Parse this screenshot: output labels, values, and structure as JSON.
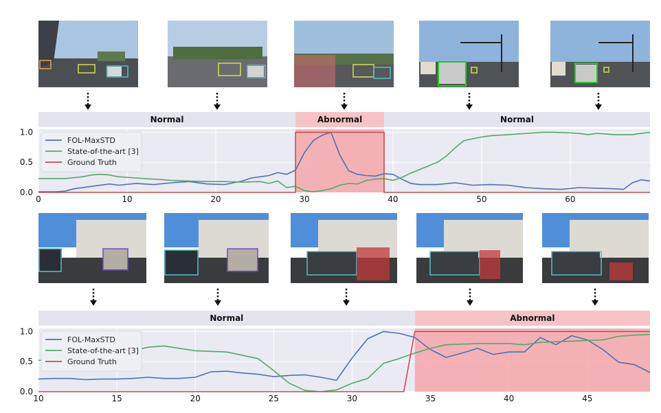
{
  "colors": {
    "fol": "#4c72b0",
    "sota": "#55a868",
    "gt": "#c44e52",
    "plot_bg": "#eaeaf2",
    "abnormal_fill": "#f4a7aa",
    "abnormal_band": "#f8c3c5",
    "normal_band": "#e4e4ee"
  },
  "chart_data": [
    {
      "type": "line",
      "xlim": [
        0,
        69
      ],
      "ylim": [
        0,
        1.05
      ],
      "x_ticks": [
        0,
        10,
        20,
        30,
        40,
        50,
        60
      ],
      "y_ticks": [
        0.0,
        0.5,
        1.0
      ],
      "y_tick_labels": [
        "0.0",
        "0.5",
        "1.0"
      ],
      "grid": true,
      "legend_position": "top-left",
      "phases": [
        {
          "label": "Normal",
          "start": 0,
          "end": 29
        },
        {
          "label": "Abnormal",
          "start": 29,
          "end": 39
        },
        {
          "label": "Normal",
          "start": 39,
          "end": 69
        }
      ],
      "abnormal_region": [
        29,
        39
      ],
      "series": [
        {
          "name": "FOL-MaxSTD",
          "color_key": "fol",
          "points": [
            [
              0,
              0.01
            ],
            [
              2,
              0.01
            ],
            [
              3,
              0.02
            ],
            [
              4,
              0.06
            ],
            [
              6,
              0.1
            ],
            [
              8,
              0.14
            ],
            [
              9,
              0.12
            ],
            [
              11,
              0.15
            ],
            [
              13,
              0.13
            ],
            [
              15,
              0.16
            ],
            [
              17,
              0.18
            ],
            [
              19,
              0.14
            ],
            [
              21,
              0.13
            ],
            [
              23,
              0.19
            ],
            [
              24,
              0.24
            ],
            [
              26,
              0.28
            ],
            [
              27,
              0.33
            ],
            [
              28,
              0.3
            ],
            [
              29,
              0.37
            ],
            [
              30,
              0.66
            ],
            [
              31,
              0.86
            ],
            [
              32,
              0.95
            ],
            [
              33,
              1.0
            ],
            [
              34,
              0.62
            ],
            [
              35,
              0.36
            ],
            [
              36,
              0.3
            ],
            [
              37,
              0.28
            ],
            [
              38,
              0.27
            ],
            [
              39,
              0.31
            ],
            [
              40,
              0.3
            ],
            [
              41,
              0.22
            ],
            [
              42,
              0.15
            ],
            [
              43,
              0.13
            ],
            [
              45,
              0.13
            ],
            [
              47,
              0.16
            ],
            [
              49,
              0.12
            ],
            [
              51,
              0.13
            ],
            [
              53,
              0.12
            ],
            [
              55,
              0.08
            ],
            [
              57,
              0.06
            ],
            [
              59,
              0.05
            ],
            [
              61,
              0.08
            ],
            [
              63,
              0.07
            ],
            [
              65,
              0.06
            ],
            [
              66,
              0.05
            ],
            [
              67,
              0.16
            ],
            [
              68,
              0.21
            ],
            [
              69,
              0.19
            ]
          ]
        },
        {
          "name": "State-of-the-art [3]",
          "color_key": "sota",
          "points": [
            [
              0,
              0.23
            ],
            [
              3,
              0.23
            ],
            [
              5,
              0.26
            ],
            [
              6,
              0.29
            ],
            [
              7,
              0.3
            ],
            [
              8,
              0.29
            ],
            [
              9,
              0.26
            ],
            [
              11,
              0.24
            ],
            [
              13,
              0.22
            ],
            [
              15,
              0.2
            ],
            [
              17,
              0.19
            ],
            [
              19,
              0.18
            ],
            [
              21,
              0.18
            ],
            [
              23,
              0.17
            ],
            [
              25,
              0.18
            ],
            [
              26,
              0.15
            ],
            [
              27,
              0.19
            ],
            [
              28,
              0.08
            ],
            [
              29,
              0.1
            ],
            [
              30,
              0.03
            ],
            [
              31,
              0.01
            ],
            [
              32,
              0.03
            ],
            [
              33,
              0.06
            ],
            [
              34,
              0.12
            ],
            [
              35,
              0.15
            ],
            [
              36,
              0.14
            ],
            [
              37,
              0.2
            ],
            [
              38,
              0.22
            ],
            [
              39,
              0.23
            ],
            [
              40,
              0.2
            ],
            [
              41,
              0.25
            ],
            [
              42,
              0.32
            ],
            [
              43,
              0.38
            ],
            [
              45,
              0.5
            ],
            [
              46,
              0.6
            ],
            [
              47,
              0.74
            ],
            [
              48,
              0.86
            ],
            [
              50,
              0.92
            ],
            [
              51,
              0.94
            ],
            [
              53,
              0.96
            ],
            [
              55,
              0.98
            ],
            [
              57,
              1.0
            ],
            [
              58,
              1.0
            ],
            [
              60,
              0.99
            ],
            [
              61,
              0.98
            ],
            [
              62,
              0.96
            ],
            [
              63,
              0.98
            ],
            [
              65,
              0.96
            ],
            [
              67,
              0.96
            ],
            [
              68,
              0.98
            ],
            [
              69,
              1.0
            ]
          ]
        },
        {
          "name": "Ground Truth",
          "color_key": "gt",
          "points": [
            [
              0,
              0
            ],
            [
              29,
              0
            ],
            [
              29,
              1
            ],
            [
              39,
              1
            ],
            [
              39,
              0
            ],
            [
              69,
              0
            ]
          ]
        }
      ]
    },
    {
      "type": "line",
      "xlim": [
        10,
        49
      ],
      "ylim": [
        0,
        1.05
      ],
      "x_ticks": [
        10,
        15,
        20,
        25,
        30,
        35,
        40,
        45
      ],
      "y_ticks": [
        0.0,
        0.5,
        1.0
      ],
      "y_tick_labels": [
        "0.0",
        "0.5",
        "1.0"
      ],
      "grid": true,
      "legend_position": "top-left",
      "phases": [
        {
          "label": "Normal",
          "start": 10,
          "end": 34
        },
        {
          "label": "Abnormal",
          "start": 34,
          "end": 49
        }
      ],
      "abnormal_region": [
        34,
        49
      ],
      "series": [
        {
          "name": "FOL-MaxSTD",
          "color_key": "fol",
          "points": [
            [
              10,
              0.21
            ],
            [
              11,
              0.22
            ],
            [
              12,
              0.22
            ],
            [
              13,
              0.2
            ],
            [
              14,
              0.21
            ],
            [
              15,
              0.21
            ],
            [
              16,
              0.22
            ],
            [
              17,
              0.24
            ],
            [
              18,
              0.22
            ],
            [
              19,
              0.22
            ],
            [
              20,
              0.24
            ],
            [
              21,
              0.33
            ],
            [
              22,
              0.34
            ],
            [
              23,
              0.31
            ],
            [
              24,
              0.29
            ],
            [
              25,
              0.25
            ],
            [
              26,
              0.27
            ],
            [
              27,
              0.28
            ],
            [
              28,
              0.24
            ],
            [
              29,
              0.19
            ],
            [
              30,
              0.56
            ],
            [
              31,
              0.88
            ],
            [
              32,
              1.0
            ],
            [
              33,
              0.97
            ],
            [
              34,
              0.9
            ],
            [
              35,
              0.7
            ],
            [
              36,
              0.57
            ],
            [
              37,
              0.64
            ],
            [
              38,
              0.72
            ],
            [
              39,
              0.62
            ],
            [
              40,
              0.66
            ],
            [
              41,
              0.66
            ],
            [
              42,
              0.9
            ],
            [
              43,
              0.78
            ],
            [
              44,
              0.93
            ],
            [
              45,
              0.86
            ],
            [
              46,
              0.7
            ],
            [
              47,
              0.49
            ],
            [
              48,
              0.45
            ],
            [
              49,
              0.32
            ]
          ]
        },
        {
          "name": "State-of-the-art [3]",
          "color_key": "sota",
          "points": [
            [
              10,
              0.52
            ],
            [
              12,
              0.53
            ],
            [
              14,
              0.56
            ],
            [
              15,
              0.58
            ],
            [
              16,
              0.68
            ],
            [
              17,
              0.74
            ],
            [
              18,
              0.76
            ],
            [
              19,
              0.72
            ],
            [
              20,
              0.68
            ],
            [
              22,
              0.66
            ],
            [
              24,
              0.55
            ],
            [
              25,
              0.35
            ],
            [
              26,
              0.14
            ],
            [
              27,
              0.02
            ],
            [
              28,
              0.0
            ],
            [
              29,
              0.03
            ],
            [
              30,
              0.14
            ],
            [
              31,
              0.22
            ],
            [
              32,
              0.47
            ],
            [
              33,
              0.55
            ],
            [
              34,
              0.64
            ],
            [
              35,
              0.72
            ],
            [
              36,
              0.78
            ],
            [
              38,
              0.8
            ],
            [
              40,
              0.8
            ],
            [
              41,
              0.78
            ],
            [
              42,
              0.82
            ],
            [
              44,
              0.84
            ],
            [
              46,
              0.86
            ],
            [
              47,
              0.92
            ],
            [
              48,
              0.94
            ],
            [
              49,
              0.95
            ]
          ]
        },
        {
          "name": "Ground Truth",
          "color_key": "gt",
          "points": [
            [
              10,
              0
            ],
            [
              33.3,
              0
            ],
            [
              34,
              1
            ],
            [
              49,
              1
            ]
          ]
        }
      ]
    }
  ]
}
